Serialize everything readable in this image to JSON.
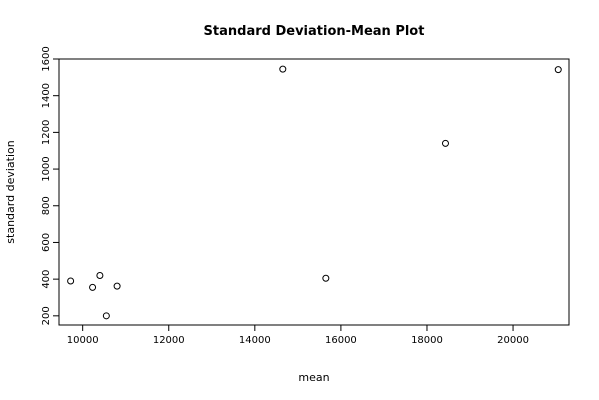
{
  "chart_data": {
    "type": "scatter",
    "title": "Standard Deviation-Mean Plot",
    "xlabel": "mean",
    "ylabel": "standard deviation",
    "xlim": [
      9450,
      21300
    ],
    "ylim": [
      150,
      1600
    ],
    "xticks": [
      10000,
      12000,
      14000,
      16000,
      18000,
      20000
    ],
    "yticks": [
      200,
      400,
      600,
      800,
      1000,
      1200,
      1400,
      1600
    ],
    "grid": false,
    "points": [
      {
        "x": 9720,
        "y": 390
      },
      {
        "x": 10230,
        "y": 355
      },
      {
        "x": 10400,
        "y": 420
      },
      {
        "x": 10550,
        "y": 200
      },
      {
        "x": 10800,
        "y": 362
      },
      {
        "x": 14650,
        "y": 1545
      },
      {
        "x": 15650,
        "y": 405
      },
      {
        "x": 18430,
        "y": 1140
      },
      {
        "x": 21050,
        "y": 1542
      }
    ]
  }
}
